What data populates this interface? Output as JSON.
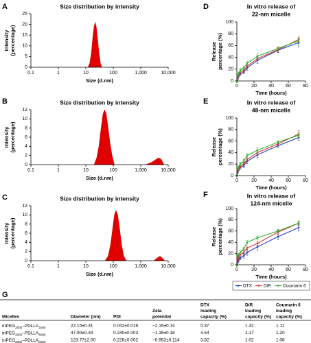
{
  "chart_data": [
    {
      "type": "area",
      "panel": "A",
      "title": [
        "Size distribution by intensity"
      ],
      "xlabel": [
        "Size (d.nm)"
      ],
      "ylabel": [
        "Intensity",
        "(percentage)"
      ],
      "xscale": "log",
      "xlim": [
        0.1,
        10000
      ],
      "xticks": [
        0.1,
        1,
        10,
        100,
        {
          "value": 1000,
          "label": "1,000"
        },
        {
          "value": 10000,
          "label": "10,000"
        }
      ],
      "ylim": [
        0,
        25
      ],
      "yticks": [
        0,
        5,
        10,
        15,
        20,
        25
      ],
      "color": "#e00000",
      "x": [
        12,
        14,
        16,
        18,
        20,
        22,
        24,
        27,
        30,
        34,
        38
      ],
      "values": [
        0,
        2,
        7,
        14,
        19,
        21,
        19,
        13,
        7,
        2,
        0
      ]
    },
    {
      "type": "area",
      "panel": "B",
      "title": [
        "Size distribution by intensity"
      ],
      "xlabel": [
        "Size (d.nm)"
      ],
      "ylabel": [
        "Intensity",
        "(percentage)"
      ],
      "xscale": "log",
      "xlim": [
        0.1,
        10000
      ],
      "xticks": [
        0.1,
        1,
        10,
        100,
        {
          "value": 1000,
          "label": "1,000"
        },
        {
          "value": 10000,
          "label": "10,000"
        }
      ],
      "ylim": [
        0,
        12
      ],
      "yticks": [
        0,
        2,
        4,
        6,
        8,
        10,
        12
      ],
      "color": "#e00000",
      "x": [
        20,
        25,
        30,
        36,
        42,
        48,
        55,
        65,
        75,
        90,
        110,
        800,
        1500,
        2500,
        3500,
        4500,
        5500,
        7000
      ],
      "values": [
        0,
        1.5,
        4,
        8,
        11,
        12,
        11.2,
        8,
        5,
        2,
        0,
        null,
        0,
        0.5,
        1.1,
        1.5,
        1.2,
        0
      ]
    },
    {
      "type": "area",
      "panel": "C",
      "title": [
        "Size distribution by intensity"
      ],
      "xlabel": [
        "Size (d.nm)"
      ],
      "ylabel": [
        "Intensity",
        "(percentage)"
      ],
      "xscale": "log",
      "xlim": [
        0.1,
        10000
      ],
      "xticks": [
        0.1,
        1,
        10,
        100,
        {
          "value": 1000,
          "label": "1,000"
        },
        {
          "value": 10000,
          "label": "10,000"
        }
      ],
      "ylim": [
        0,
        12
      ],
      "yticks": [
        0,
        2,
        4,
        6,
        8,
        10,
        12
      ],
      "color": "#e00000",
      "x": [
        50,
        65,
        80,
        95,
        110,
        125,
        145,
        170,
        200,
        240,
        300,
        1500,
        3000,
        4000,
        5000,
        6000,
        7500
      ],
      "values": [
        0,
        1,
        3.5,
        7,
        10,
        11,
        10,
        7,
        3.5,
        1,
        0,
        null,
        0,
        0.6,
        1,
        0.6,
        0
      ]
    },
    {
      "type": "line",
      "panel": "D",
      "title": [
        "In vitro release of",
        "22-nm micelle"
      ],
      "xlabel": [
        "Time (hours)"
      ],
      "ylabel": [
        "Release",
        "percentage (%)"
      ],
      "xlim": [
        0,
        80
      ],
      "xticks": [
        0,
        20,
        40,
        60,
        80
      ],
      "ylim": [
        0,
        100
      ],
      "yticks": [
        0,
        20,
        40,
        60,
        80,
        100
      ],
      "x": [
        0,
        1,
        2,
        4,
        8,
        12,
        24,
        48,
        72
      ],
      "series": [
        {
          "color": "#1f3fbf",
          "values": [
            0,
            5,
            8,
            12,
            15,
            22,
            35,
            52,
            65
          ],
          "errors": [
            0,
            2,
            2,
            3,
            3,
            4,
            5,
            4,
            7
          ]
        },
        {
          "color": "#e03030",
          "values": [
            0,
            6,
            10,
            14,
            18,
            25,
            38,
            53,
            70
          ],
          "errors": [
            0,
            2,
            2,
            3,
            3,
            4,
            4,
            4,
            5
          ]
        },
        {
          "color": "#30b030",
          "values": [
            0,
            8,
            12,
            18,
            22,
            30,
            42,
            55,
            68
          ],
          "errors": [
            0,
            2,
            3,
            3,
            3,
            3,
            4,
            3,
            5
          ]
        }
      ]
    },
    {
      "type": "line",
      "panel": "E",
      "title": [
        "In vitro release of",
        "48-nm micelle"
      ],
      "xlabel": [
        "Time (hours)"
      ],
      "ylabel": [
        "Release",
        "percentage (%)"
      ],
      "xlim": [
        0,
        80
      ],
      "xticks": [
        0,
        20,
        40,
        60,
        80
      ],
      "ylim": [
        0,
        100
      ],
      "yticks": [
        0,
        20,
        40,
        60,
        80,
        100
      ],
      "x": [
        0,
        1,
        2,
        4,
        8,
        12,
        24,
        48,
        72
      ],
      "series": [
        {
          "color": "#1f3fbf",
          "values": [
            0,
            6,
            10,
            14,
            17,
            25,
            36,
            52,
            66
          ],
          "errors": [
            0,
            2,
            2,
            3,
            3,
            4,
            5,
            4,
            5
          ]
        },
        {
          "color": "#e03030",
          "values": [
            0,
            8,
            12,
            16,
            20,
            28,
            40,
            55,
            72
          ],
          "errors": [
            0,
            2,
            3,
            3,
            3,
            4,
            4,
            4,
            6
          ]
        },
        {
          "color": "#30b030",
          "values": [
            0,
            10,
            15,
            20,
            25,
            35,
            44,
            58,
            70
          ],
          "errors": [
            0,
            2,
            2,
            3,
            3,
            3,
            4,
            3,
            4
          ]
        }
      ]
    },
    {
      "type": "line",
      "panel": "F",
      "title": [
        "In vitro release of",
        "124-nm micelle"
      ],
      "xlabel": [
        "Time (hours)"
      ],
      "ylabel": [
        "Release",
        "percentage (%)"
      ],
      "xlim": [
        0,
        80
      ],
      "xticks": [
        0,
        20,
        40,
        60,
        80
      ],
      "ylim": [
        0,
        100
      ],
      "yticks": [
        0,
        20,
        40,
        60,
        80,
        100
      ],
      "x": [
        0,
        1,
        2,
        4,
        8,
        12,
        24,
        48,
        72
      ],
      "series": [
        {
          "name": "DTX",
          "color": "#1f3fbf",
          "values": [
            0,
            5,
            8,
            12,
            16,
            22,
            32,
            50,
            66
          ],
          "errors": [
            0,
            2,
            3,
            3,
            4,
            5,
            6,
            5,
            6
          ]
        },
        {
          "name": "DiR",
          "color": "#e03030",
          "values": [
            0,
            8,
            12,
            18,
            22,
            30,
            38,
            58,
            74
          ],
          "errors": [
            0,
            2,
            3,
            3,
            3,
            4,
            4,
            4,
            4
          ]
        },
        {
          "name": "Coumarin 6",
          "color": "#30b030",
          "values": [
            0,
            15,
            18,
            22,
            28,
            40,
            48,
            60,
            74
          ],
          "errors": [
            0,
            2,
            2,
            3,
            3,
            3,
            3,
            3,
            3
          ]
        }
      ]
    }
  ],
  "table": {
    "panel": "G",
    "headers": [
      [
        "Micelles"
      ],
      [
        "Diameter (nm)"
      ],
      [
        "PDI"
      ],
      [
        "Zeta",
        "potential"
      ],
      [
        "DTX",
        "loading",
        "capacity (%)"
      ],
      [
        "DiR",
        "loading",
        "capacity (%)"
      ],
      [
        "Coumarin 6",
        "loading",
        "capacity (%)"
      ]
    ],
    "rows": [
      [
        {
          "a": "mPEG",
          "s1": "2000",
          "b": "–PDLLA",
          "s2": "2000"
        },
        "22.15±0.31",
        "0.042±0.016",
        "−2.16±0.14",
        "5.37",
        "1.32",
        "1.12"
      ],
      [
        {
          "a": "mPEG",
          "s1": "2000",
          "b": "–PDLLA",
          "s2": "5000"
        },
        "47.90±0.34",
        "0.240±0.003",
        "−1.38±0.18",
        "4.54",
        "1.17",
        "1.20"
      ],
      [
        {
          "a": "mPEG",
          "s1": "2000",
          "b": "–PDLLA",
          "s2": "8000"
        },
        "123.77±2.00",
        "0.226±0.002",
        "−0.952±0.114",
        "3.82",
        "1.02",
        "1.08"
      ]
    ]
  }
}
